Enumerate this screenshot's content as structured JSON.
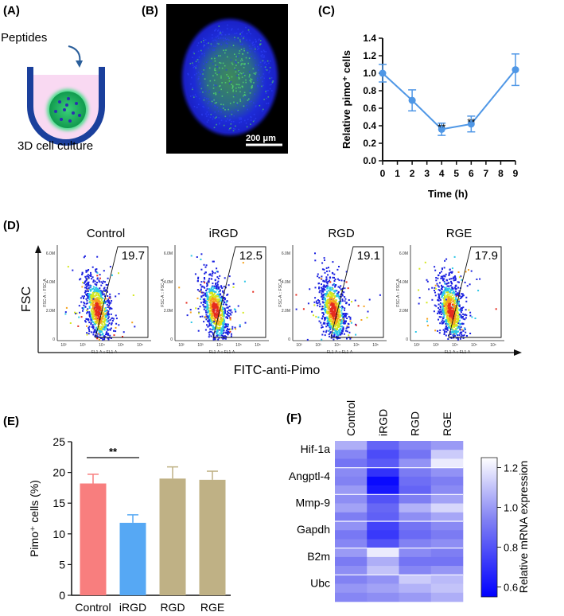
{
  "panel_labels": {
    "a": "(A)",
    "b": "(B)",
    "c": "(C)",
    "d": "(D)",
    "e": "(E)",
    "f": "(F)"
  },
  "panel_a": {
    "arrow_label": "Peptides",
    "caption": "3D cell culture"
  },
  "panel_b": {
    "scale_label": "200 μm"
  },
  "colors": {
    "line_blue": "#4f97e6",
    "bar_control": "#f87e7e",
    "bar_irgd": "#56a8f4",
    "bar_rgd": "#bfb185",
    "bar_rge": "#bfb185"
  },
  "panel_d": {
    "y_axis_label": "FSC",
    "x_axis_label": "FITC-anti-Pimo",
    "inner_y_label": "FSC-A :: FSC-A",
    "inner_x_label": "FL1-A :: FL1-A",
    "y_ticks": [
      "6.0M",
      "4.0M",
      "2.0M",
      "0"
    ],
    "x_ticks": [
      "10²",
      "10³",
      "10⁴",
      "10⁵",
      "10⁶"
    ],
    "plots": [
      {
        "title": "Control",
        "gate_value": "19.7"
      },
      {
        "title": "iRGD",
        "gate_value": "12.5"
      },
      {
        "title": "RGD",
        "gate_value": "19.1"
      },
      {
        "title": "RGE",
        "gate_value": "17.9"
      }
    ]
  },
  "chart_data": [
    {
      "id": "panel_c",
      "type": "line",
      "title": "",
      "xlabel": "Time (h)",
      "ylabel": "Relative pimo⁺ cells",
      "x": [
        0,
        2,
        4,
        6,
        9
      ],
      "y": [
        1.0,
        0.69,
        0.36,
        0.42,
        1.04
      ],
      "error": [
        0.1,
        0.12,
        0.07,
        0.09,
        0.18
      ],
      "xlim": [
        0,
        9
      ],
      "ylim": [
        0,
        1.4
      ],
      "x_ticks": [
        "0",
        "1",
        "2",
        "3",
        "4",
        "5",
        "6",
        "7",
        "8",
        "9"
      ],
      "y_ticks": [
        "0.0",
        "0.2",
        "0.4",
        "0.6",
        "0.8",
        "1.0",
        "1.2",
        "1.4"
      ],
      "annotations": [
        {
          "x": 4,
          "text": "**"
        },
        {
          "x": 6,
          "text": "**"
        }
      ]
    },
    {
      "id": "panel_e",
      "type": "bar",
      "title": "",
      "xlabel": "",
      "ylabel": "Pimo⁺ cells (%)",
      "categories": [
        "Control",
        "iRGD",
        "RGD",
        "RGE"
      ],
      "values": [
        18.2,
        11.8,
        19.0,
        18.8
      ],
      "error": [
        1.5,
        1.3,
        1.9,
        1.4
      ],
      "ylim": [
        0,
        25
      ],
      "y_ticks": [
        "0",
        "5",
        "10",
        "15",
        "20",
        "25"
      ],
      "annotations": [
        {
          "between": [
            "Control",
            "iRGD"
          ],
          "text": "**"
        }
      ]
    },
    {
      "id": "panel_f",
      "type": "heatmap",
      "title": "",
      "columns": [
        "Control",
        "iRGD",
        "RGD",
        "RGE"
      ],
      "row_groups": [
        "Hif-1a",
        "Angptl-4",
        "Mmp-9",
        "Gapdh",
        "B2m",
        "Ubc"
      ],
      "colorbar_label": "Relative mRNA expression",
      "colorbar_range": [
        0.55,
        1.25
      ],
      "colorbar_ticks": [
        "0.6",
        "0.8",
        "1.0",
        "1.2"
      ],
      "values": [
        [
          1.05,
          0.85,
          0.95,
          1.0
        ],
        [
          0.95,
          0.78,
          0.9,
          1.12
        ],
        [
          0.9,
          0.82,
          0.98,
          1.2
        ],
        [
          0.96,
          0.7,
          0.92,
          0.98
        ],
        [
          0.94,
          0.58,
          0.88,
          0.93
        ],
        [
          1.0,
          0.62,
          0.85,
          0.96
        ],
        [
          0.97,
          0.8,
          0.93,
          1.02
        ],
        [
          1.02,
          0.86,
          1.06,
          1.15
        ],
        [
          0.93,
          0.84,
          0.97,
          1.03
        ],
        [
          0.98,
          0.75,
          0.9,
          0.96
        ],
        [
          0.91,
          0.72,
          0.87,
          0.92
        ],
        [
          0.95,
          0.8,
          0.94,
          0.97
        ],
        [
          1.0,
          1.2,
          0.96,
          0.93
        ],
        [
          0.92,
          1.05,
          0.9,
          0.9
        ],
        [
          0.97,
          1.1,
          0.95,
          0.99
        ],
        [
          0.94,
          0.98,
          1.12,
          1.08
        ],
        [
          0.99,
          1.02,
          1.06,
          1.1
        ],
        [
          0.95,
          0.97,
          1.0,
          1.05
        ]
      ]
    }
  ]
}
